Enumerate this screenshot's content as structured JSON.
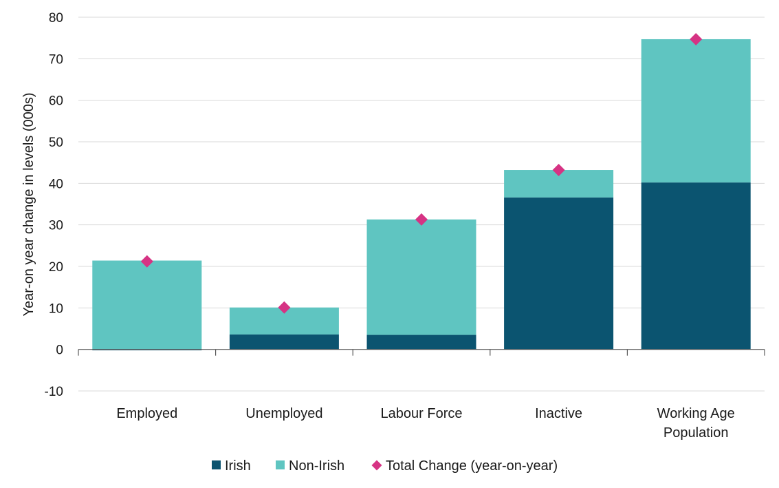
{
  "chart_data": {
    "type": "bar",
    "stacked": true,
    "categories": [
      [
        "Employed"
      ],
      [
        "Unemployed"
      ],
      [
        "Labour Force"
      ],
      [
        "Inactive"
      ],
      [
        "Working Age",
        "Population"
      ]
    ],
    "series": [
      {
        "name": "Irish",
        "values": [
          -0.2,
          3.6,
          3.5,
          36.6,
          40.2
        ],
        "color": "#0b5470"
      },
      {
        "name": "Non-Irish",
        "values": [
          21.4,
          6.5,
          27.8,
          6.6,
          34.5
        ],
        "color": "#5fc5c1"
      }
    ],
    "markers": {
      "name": "Total Change (year-on-year)",
      "values": [
        21.2,
        10.1,
        31.3,
        43.2,
        74.7
      ],
      "color": "#d63384",
      "shape": "diamond"
    },
    "ylabel": "Year-on year change in levels (000s)",
    "ylim": [
      -10,
      80
    ],
    "yticks": [
      -10,
      0,
      10,
      20,
      30,
      40,
      50,
      60,
      70,
      80
    ],
    "grid": true,
    "legend": "bottom"
  }
}
